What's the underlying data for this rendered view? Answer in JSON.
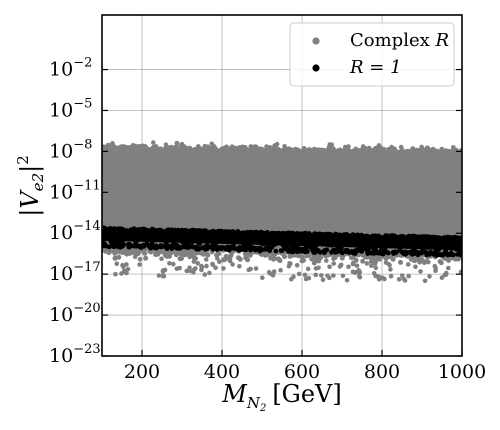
{
  "chart_data": {
    "type": "scatter",
    "title": "",
    "xlabel": {
      "var": "M",
      "sub": "N",
      "subsub": "2",
      "unit": "[GeV]"
    },
    "ylabel": {
      "bar": "|",
      "var": "V",
      "sub": "e2",
      "power": "2"
    },
    "xlim": [
      100,
      1000
    ],
    "ylim_log10": [
      -23,
      2
    ],
    "yscale": "log",
    "grid": true,
    "legend_position": "top-right",
    "x_ticks": [
      200,
      400,
      600,
      800,
      1000
    ],
    "x_tick_labels": [
      "200",
      "400",
      "600",
      "800",
      "1000"
    ],
    "y_tick_exponents": [
      -23,
      -20,
      -17,
      -14,
      -11,
      -8,
      -5,
      -2
    ],
    "y_tick_base": "10",
    "series": [
      {
        "name": "Complex R",
        "legend_text": "Complex",
        "legend_var": "R",
        "color": "#808080",
        "x_range": [
          100,
          1000
        ],
        "log10_y_main_band": {
          "x": [
            100,
            1000
          ],
          "upper": [
            -8.0,
            -8.3
          ],
          "lower": [
            -14.6,
            -15.1
          ]
        },
        "log10_y_sparse_extent": {
          "x": [
            100,
            1000
          ],
          "upper": [
            -7.3,
            -7.6
          ],
          "lower": [
            -17.2,
            -17.6
          ]
        }
      },
      {
        "name": "R = 1",
        "legend_text": "R = 1",
        "color": "#000000",
        "x_range": [
          100,
          1000
        ],
        "log10_y_band": {
          "x": [
            100,
            1000
          ],
          "upper": [
            -13.6,
            -14.3
          ],
          "lower": [
            -15.0,
            -15.7
          ]
        }
      }
    ]
  }
}
